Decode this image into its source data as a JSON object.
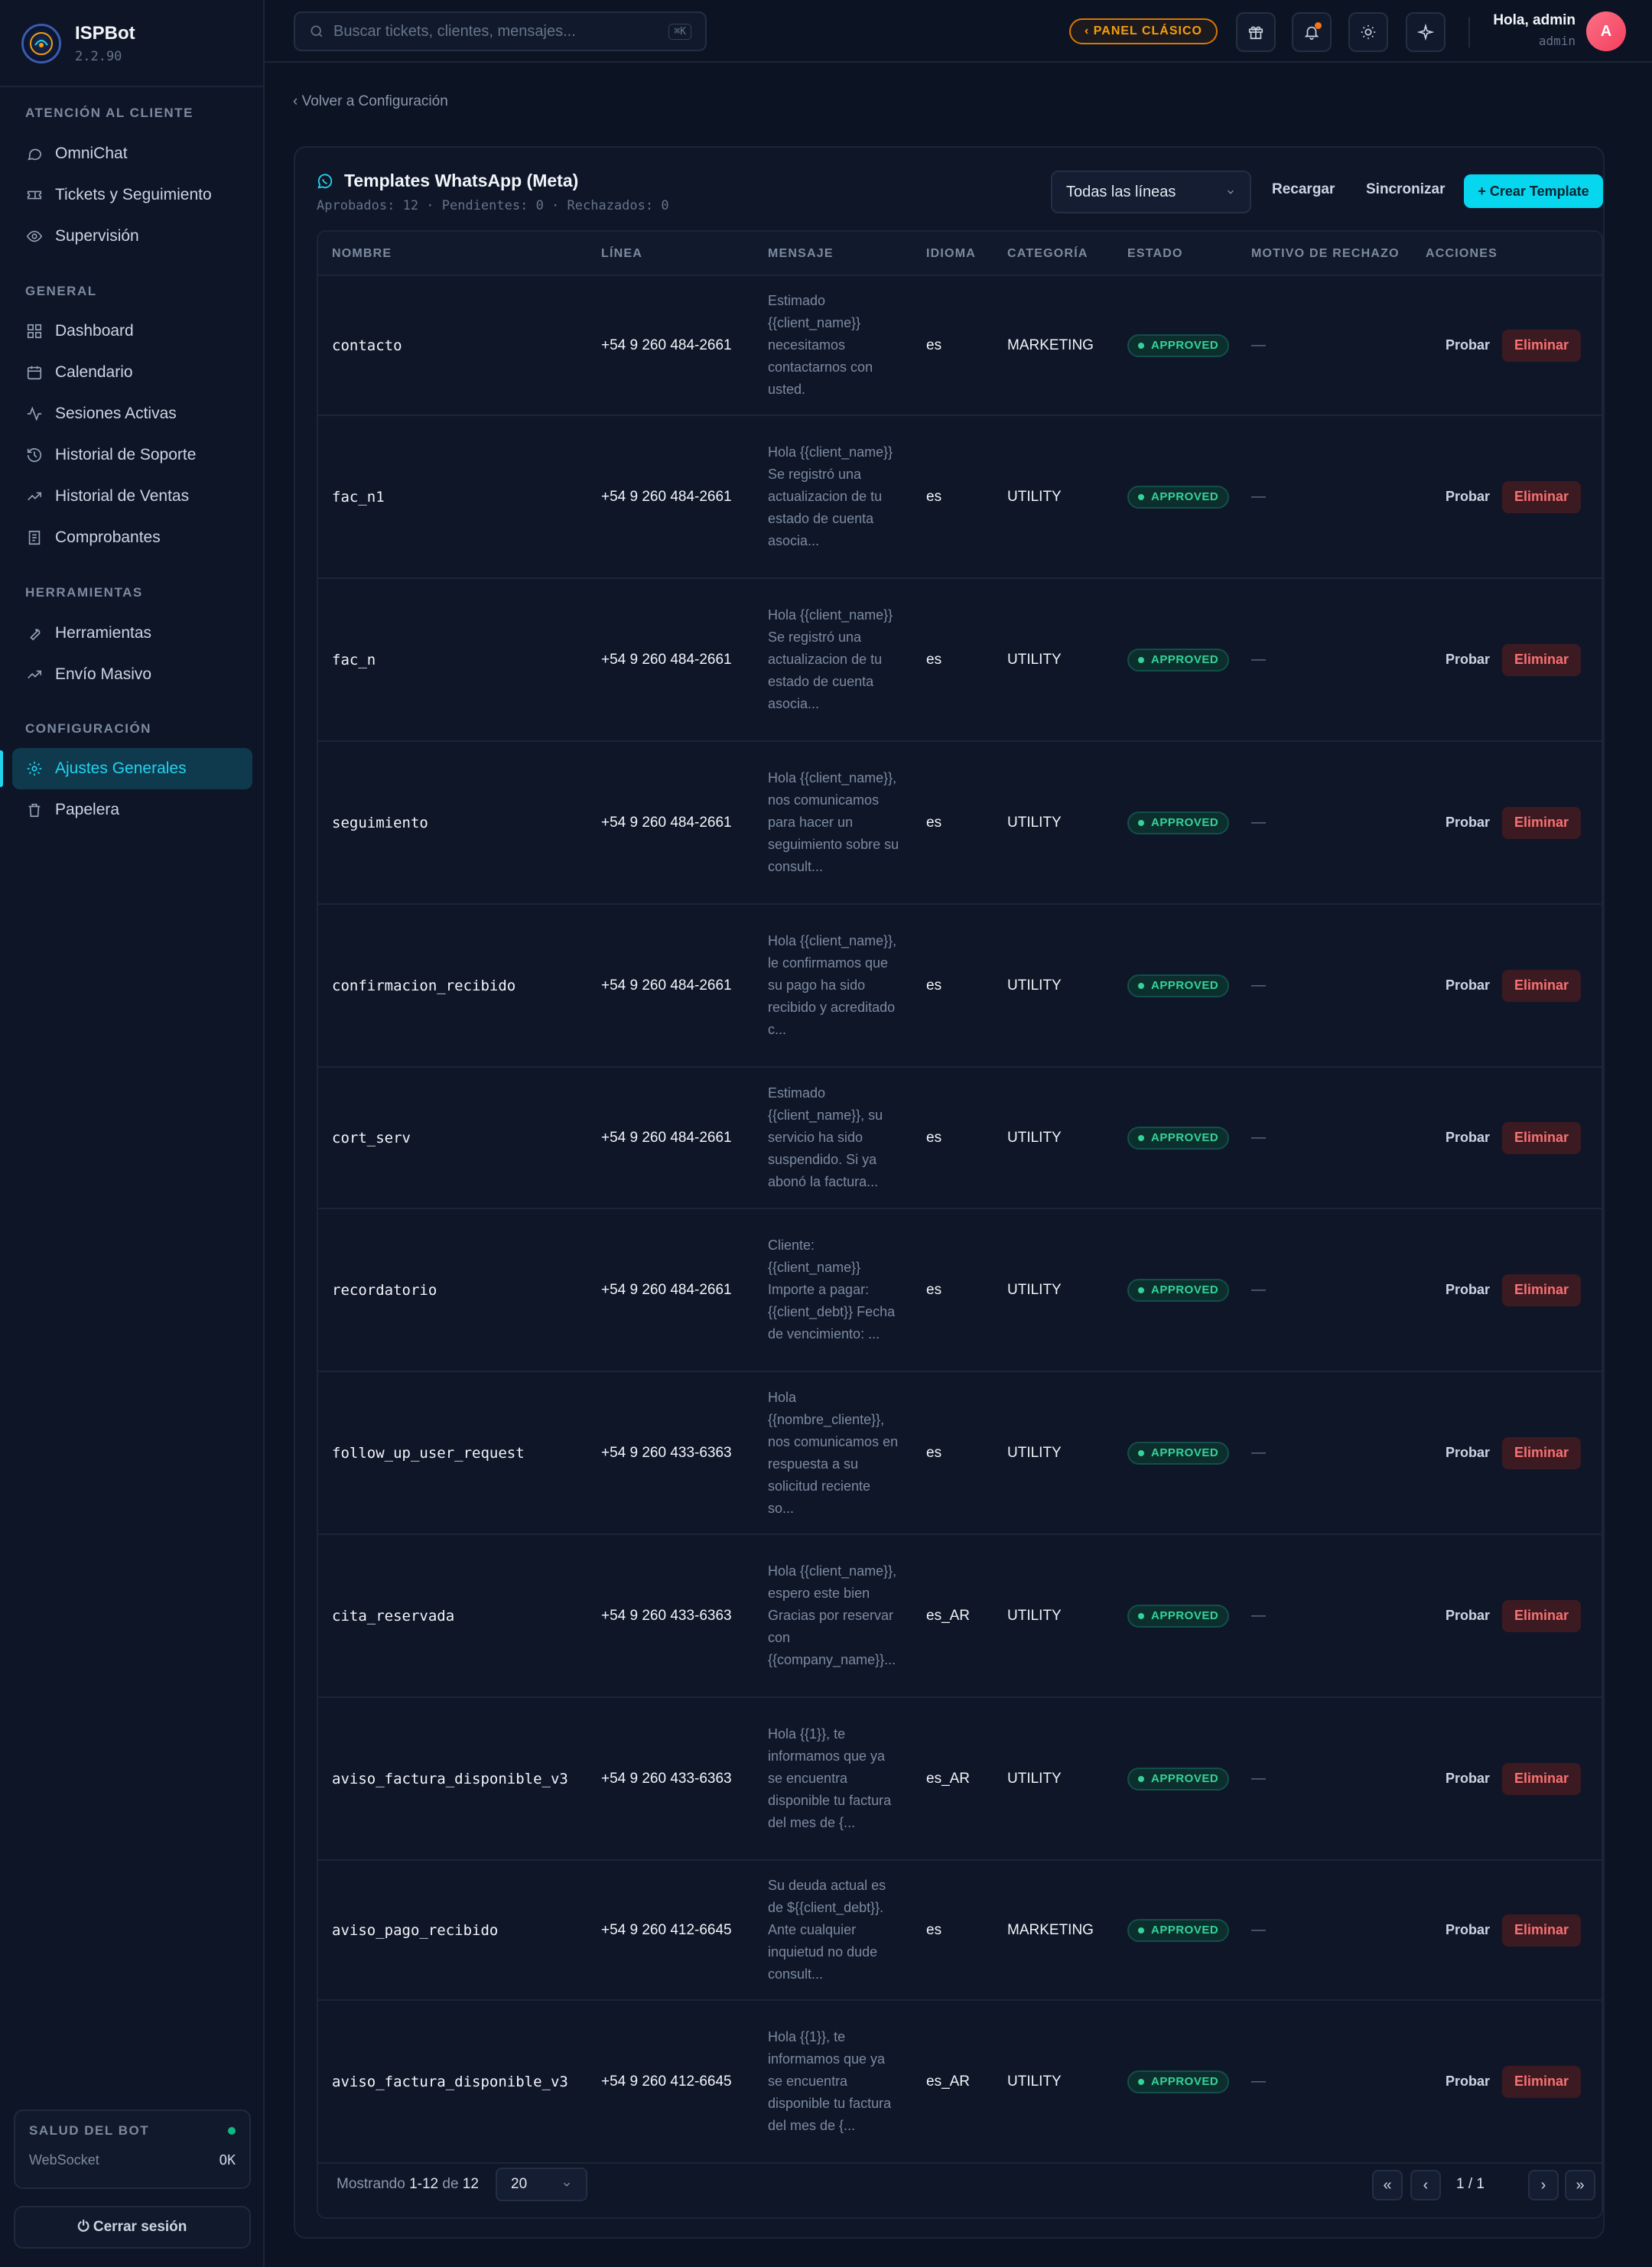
{
  "app": {
    "name": "ISPBot",
    "version": "2.2.90"
  },
  "sidebar": {
    "sections": [
      {
        "title": "ATENCIÓN AL CLIENTE"
      },
      {
        "title": "GENERAL"
      },
      {
        "title": "HERRAMIENTAS"
      },
      {
        "title": "CONFIGURACIÓN"
      }
    ],
    "items": [
      {
        "label": "OmniChat",
        "icon": "chat-icon"
      },
      {
        "label": "Tickets y Seguimiento",
        "icon": "ticket-icon"
      },
      {
        "label": "Supervisión",
        "icon": "eye-icon"
      },
      {
        "label": "Dashboard",
        "icon": "grid-icon"
      },
      {
        "label": "Calendario",
        "icon": "calendar-icon"
      },
      {
        "label": "Sesiones Activas",
        "icon": "activity-icon"
      },
      {
        "label": "Historial de Soporte",
        "icon": "history-icon"
      },
      {
        "label": "Historial de Ventas",
        "icon": "trend-icon"
      },
      {
        "label": "Comprobantes",
        "icon": "receipt-icon"
      },
      {
        "label": "Herramientas",
        "icon": "wrench-icon"
      },
      {
        "label": "Envío Masivo",
        "icon": "trend-icon"
      },
      {
        "label": "Ajustes Generales",
        "icon": "gear-icon",
        "active": true
      },
      {
        "label": "Papelera",
        "icon": "trash-icon"
      }
    ],
    "health": {
      "title": "SALUD DEL BOT",
      "label": "WebSocket",
      "value": "OK"
    },
    "logout": "⏻ Cerrar sesión"
  },
  "topbar": {
    "search_placeholder": "Buscar tickets, clientes, mensajes...",
    "shortcut": "⌘K",
    "classic_label": "‹ PANEL CLÁSICO",
    "user_greeting": "Hola, admin",
    "user_role": "admin",
    "avatar_letter": "A"
  },
  "back_link": "‹ Volver a Configuración",
  "card": {
    "title": "Templates WhatsApp (Meta)",
    "subtitle": "Aprobados: 12 · Pendientes: 0 · Rechazados: 0",
    "line_filter": "Todas las líneas",
    "reload_label": "Recargar",
    "sync_label": "Sincronizar",
    "create_label": "+ Crear Template"
  },
  "table": {
    "headers": [
      "NOMBRE",
      "LÍNEA",
      "MENSAJE",
      "IDIOMA",
      "CATEGORÍA",
      "ESTADO",
      "MOTIVO DE RECHAZO",
      "ACCIONES"
    ],
    "rows": [
      {
        "name": "contacto",
        "line": "+54 9 260 484-2661",
        "message": "Estimado {{client_name}} necesitamos contactarnos con usted.",
        "lang": "es",
        "category": "MARKETING",
        "status": "APPROVED",
        "reason": "—"
      },
      {
        "name": "fac_n1",
        "line": "+54 9 260 484-2661",
        "message": "Hola {{client_name}} Se registró una actualizacion de tu estado de cuenta asocia...",
        "lang": "es",
        "category": "UTILITY",
        "status": "APPROVED",
        "reason": "—"
      },
      {
        "name": "fac_n",
        "line": "+54 9 260 484-2661",
        "message": "Hola {{client_name}} Se registró una actualizacion de tu estado de cuenta asocia...",
        "lang": "es",
        "category": "UTILITY",
        "status": "APPROVED",
        "reason": "—"
      },
      {
        "name": "seguimiento",
        "line": "+54 9 260 484-2661",
        "message": "Hola {{client_name}}, nos comunicamos para hacer un seguimiento sobre su consult...",
        "lang": "es",
        "category": "UTILITY",
        "status": "APPROVED",
        "reason": "—"
      },
      {
        "name": "confirmacion_recibido",
        "line": "+54 9 260 484-2661",
        "message": "Hola {{client_name}}, le confirmamos que su pago ha sido recibido y acreditado c...",
        "lang": "es",
        "category": "UTILITY",
        "status": "APPROVED",
        "reason": "—"
      },
      {
        "name": "cort_serv",
        "line": "+54 9 260 484-2661",
        "message": "Estimado {{client_name}}, su servicio ha sido suspendido. Si ya abonó la factura...",
        "lang": "es",
        "category": "UTILITY",
        "status": "APPROVED",
        "reason": "—"
      },
      {
        "name": "recordatorio",
        "line": "+54 9 260 484-2661",
        "message": "Cliente: {{client_name}} Importe a pagar: {{client_debt}} Fecha de vencimiento: ...",
        "lang": "es",
        "category": "UTILITY",
        "status": "APPROVED",
        "reason": "—"
      },
      {
        "name": "follow_up_user_request",
        "line": "+54 9 260 433-6363",
        "message": "Hola {{nombre_cliente}}, nos comunicamos en respuesta a su solicitud reciente so...",
        "lang": "es",
        "category": "UTILITY",
        "status": "APPROVED",
        "reason": "—"
      },
      {
        "name": "cita_reservada",
        "line": "+54 9 260 433-6363",
        "message": "Hola {{client_name}}, espero este bien Gracias por reservar con {{company_name}}...",
        "lang": "es_AR",
        "category": "UTILITY",
        "status": "APPROVED",
        "reason": "—"
      },
      {
        "name": "aviso_factura_disponible_v3",
        "line": "+54 9 260 433-6363",
        "message": "Hola {{1}}, te informamos que ya se encuentra disponible tu factura del mes de {...",
        "lang": "es_AR",
        "category": "UTILITY",
        "status": "APPROVED",
        "reason": "—"
      },
      {
        "name": "aviso_pago_recibido",
        "line": "+54 9 260 412-6645",
        "message": "Su deuda actual es de ${{client_debt}}. Ante cualquier inquietud no dude consult...",
        "lang": "es",
        "category": "MARKETING",
        "status": "APPROVED",
        "reason": "—"
      },
      {
        "name": "aviso_factura_disponible_v3",
        "line": "+54 9 260 412-6645",
        "message": "Hola {{1}}, te informamos que ya se encuentra disponible tu factura del mes de {...",
        "lang": "es_AR",
        "category": "UTILITY",
        "status": "APPROVED",
        "reason": "—"
      }
    ],
    "action_test": "Probar",
    "action_delete": "Eliminar"
  },
  "pagination": {
    "showing_prefix": "Mostrando",
    "range": "1-12",
    "of": "de",
    "total": "12",
    "page_size": "20",
    "page_info": "1  /  1",
    "first": "«",
    "prev": "‹",
    "next": "›",
    "last": "»"
  }
}
